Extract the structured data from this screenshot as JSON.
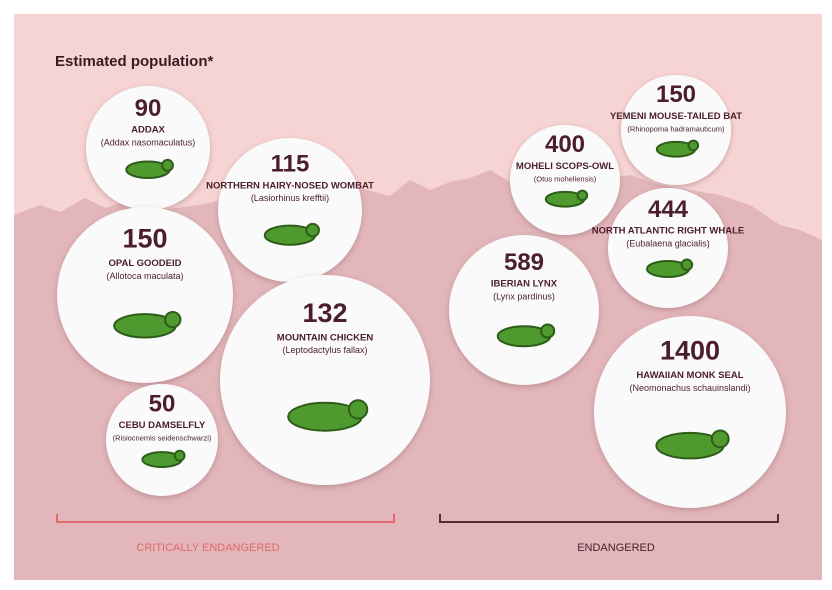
{
  "title": "Estimated population*",
  "animals": [
    {
      "population": 90,
      "name": "ADDAX",
      "scientific": "(Addax nasomaculatus)"
    },
    {
      "population": 115,
      "name": "NORTHERN HAIRY-NOSED WOMBAT",
      "scientific": "(Lasiorhinus krefftii)"
    },
    {
      "population": 150,
      "name": "OPAL GOODEID",
      "scientific": "(Allotoca maculata)"
    },
    {
      "population": 132,
      "name": "MOUNTAIN CHICKEN",
      "scientific": "(Leptodactylus fallax)"
    },
    {
      "population": 50,
      "name": "CEBU DAMSELFLY",
      "scientific": "(Risiocnemis seidenschwarzi)"
    },
    {
      "population": 400,
      "name": "MOHELI SCOPS-OWL",
      "scientific": "(Otus moheliensis)"
    },
    {
      "population": 150,
      "name": "YEMENI MOUSE-TAILED BAT",
      "scientific": "(Rhinopoma hadramauticum)"
    },
    {
      "population": 444,
      "name": "NORTH ATLANTIC RIGHT WHALE",
      "scientific": "(Eubalaena glacialis)"
    },
    {
      "population": 589,
      "name": "IBERIAN LYNX",
      "scientific": "(Lynx pardinus)"
    },
    {
      "population": 1400,
      "name": "HAWAIIAN MONK SEAL",
      "scientific": "(Neomonachus schauinslandi)"
    }
  ],
  "groups": [
    {
      "label": "CRITICALLY ENDANGERED"
    },
    {
      "label": "ENDANGERED"
    }
  ]
}
